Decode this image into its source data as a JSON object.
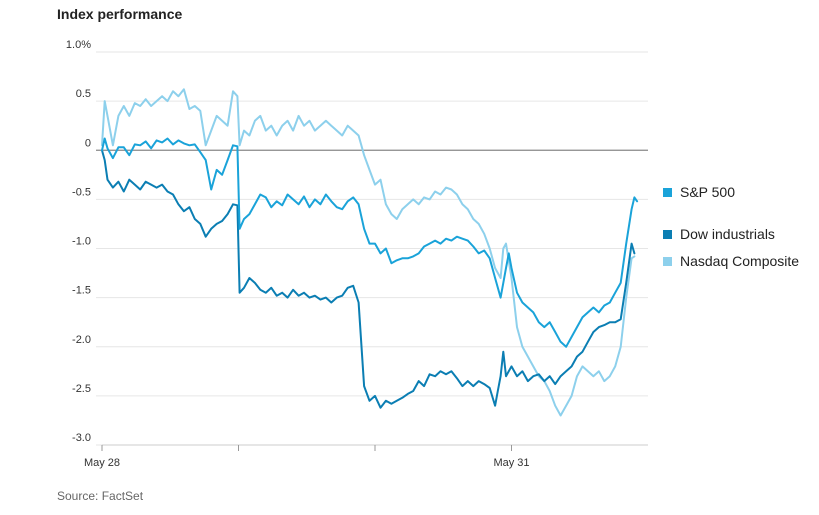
{
  "chart_data": {
    "type": "line",
    "title": "Index performance",
    "source": "Source: FactSet",
    "xlabel": "",
    "ylabel": "",
    "ylim": [
      -3.0,
      1.0
    ],
    "xlim": [
      0,
      100
    ],
    "y_ticks": [
      {
        "value": 1.0,
        "label": "1.0%"
      },
      {
        "value": 0.5,
        "label": "0.5"
      },
      {
        "value": 0,
        "label": "0"
      },
      {
        "value": -0.5,
        "label": "-0.5"
      },
      {
        "value": -1.0,
        "label": "-1.0"
      },
      {
        "value": -1.5,
        "label": "-1.5"
      },
      {
        "value": -2.0,
        "label": "-2.0"
      },
      {
        "value": -2.5,
        "label": "-2.5"
      },
      {
        "value": -3.0,
        "label": "-3.0"
      }
    ],
    "x_ticks": [
      {
        "x": 0,
        "label": "May 28"
      },
      {
        "x": 25,
        "label": ""
      },
      {
        "x": 50,
        "label": ""
      },
      {
        "x": 75,
        "label": "May 31"
      }
    ],
    "grid": true,
    "legend_position": "right",
    "series": [
      {
        "name": "S&P 500",
        "color": "#1aa3d9",
        "points": [
          [
            0,
            0
          ],
          [
            0.5,
            0.12
          ],
          [
            1,
            0.02
          ],
          [
            2,
            -0.08
          ],
          [
            3,
            0.03
          ],
          [
            4,
            0.03
          ],
          [
            5,
            -0.05
          ],
          [
            6,
            0.06
          ],
          [
            7,
            0.05
          ],
          [
            8,
            0.09
          ],
          [
            9,
            0.02
          ],
          [
            10,
            0.1
          ],
          [
            11,
            0.08
          ],
          [
            12,
            0.12
          ],
          [
            13,
            0.06
          ],
          [
            14,
            0.1
          ],
          [
            15,
            0.07
          ],
          [
            16,
            0.05
          ],
          [
            17,
            0.06
          ],
          [
            18,
            -0.02
          ],
          [
            19,
            -0.1
          ],
          [
            20,
            -0.4
          ],
          [
            21,
            -0.2
          ],
          [
            22,
            -0.25
          ],
          [
            23,
            -0.1
          ],
          [
            24,
            0.05
          ],
          [
            24.8,
            0.04
          ],
          [
            25.2,
            -0.8
          ],
          [
            26,
            -0.7
          ],
          [
            27,
            -0.65
          ],
          [
            28,
            -0.55
          ],
          [
            29,
            -0.45
          ],
          [
            30,
            -0.48
          ],
          [
            31,
            -0.58
          ],
          [
            32,
            -0.52
          ],
          [
            33,
            -0.56
          ],
          [
            34,
            -0.45
          ],
          [
            35,
            -0.5
          ],
          [
            36,
            -0.55
          ],
          [
            37,
            -0.47
          ],
          [
            38,
            -0.58
          ],
          [
            39,
            -0.5
          ],
          [
            40,
            -0.55
          ],
          [
            41,
            -0.45
          ],
          [
            42,
            -0.52
          ],
          [
            43,
            -0.58
          ],
          [
            44,
            -0.6
          ],
          [
            45,
            -0.52
          ],
          [
            46,
            -0.48
          ],
          [
            47,
            -0.55
          ],
          [
            48,
            -0.8
          ],
          [
            49,
            -0.95
          ],
          [
            50,
            -0.95
          ],
          [
            51,
            -1.05
          ],
          [
            52,
            -1.0
          ],
          [
            53,
            -1.15
          ],
          [
            54,
            -1.12
          ],
          [
            55,
            -1.1
          ],
          [
            56,
            -1.1
          ],
          [
            57,
            -1.08
          ],
          [
            58,
            -1.05
          ],
          [
            59,
            -0.98
          ],
          [
            60,
            -0.95
          ],
          [
            61,
            -0.92
          ],
          [
            62,
            -0.95
          ],
          [
            63,
            -0.9
          ],
          [
            64,
            -0.92
          ],
          [
            65,
            -0.88
          ],
          [
            66,
            -0.9
          ],
          [
            67,
            -0.92
          ],
          [
            68,
            -0.98
          ],
          [
            69,
            -1.05
          ],
          [
            70,
            -1.02
          ],
          [
            71,
            -1.1
          ],
          [
            72,
            -1.3
          ],
          [
            73,
            -1.5
          ],
          [
            73.5,
            -1.35
          ],
          [
            74,
            -1.2
          ],
          [
            74.5,
            -1.05
          ],
          [
            75,
            -1.2
          ],
          [
            76,
            -1.45
          ],
          [
            77,
            -1.55
          ],
          [
            78,
            -1.6
          ],
          [
            79,
            -1.65
          ],
          [
            80,
            -1.75
          ],
          [
            81,
            -1.8
          ],
          [
            82,
            -1.75
          ],
          [
            83,
            -1.85
          ],
          [
            84,
            -1.95
          ],
          [
            85,
            -2.0
          ],
          [
            86,
            -1.9
          ],
          [
            87,
            -1.8
          ],
          [
            88,
            -1.7
          ],
          [
            89,
            -1.65
          ],
          [
            90,
            -1.6
          ],
          [
            91,
            -1.65
          ],
          [
            92,
            -1.58
          ],
          [
            93,
            -1.55
          ],
          [
            94,
            -1.45
          ],
          [
            95,
            -1.35
          ],
          [
            96,
            -0.95
          ],
          [
            97,
            -0.6
          ],
          [
            97.5,
            -0.48
          ],
          [
            98,
            -0.52
          ]
        ]
      },
      {
        "name": "Dow industrials",
        "color": "#0b7eb3",
        "points": [
          [
            0,
            0
          ],
          [
            0.5,
            -0.1
          ],
          [
            1,
            -0.3
          ],
          [
            2,
            -0.38
          ],
          [
            3,
            -0.32
          ],
          [
            4,
            -0.42
          ],
          [
            5,
            -0.3
          ],
          [
            6,
            -0.35
          ],
          [
            7,
            -0.4
          ],
          [
            8,
            -0.32
          ],
          [
            9,
            -0.35
          ],
          [
            10,
            -0.38
          ],
          [
            11,
            -0.35
          ],
          [
            12,
            -0.42
          ],
          [
            13,
            -0.45
          ],
          [
            14,
            -0.55
          ],
          [
            15,
            -0.62
          ],
          [
            16,
            -0.58
          ],
          [
            17,
            -0.7
          ],
          [
            18,
            -0.75
          ],
          [
            19,
            -0.88
          ],
          [
            20,
            -0.8
          ],
          [
            21,
            -0.75
          ],
          [
            22,
            -0.72
          ],
          [
            23,
            -0.65
          ],
          [
            24,
            -0.55
          ],
          [
            24.8,
            -0.56
          ],
          [
            25.2,
            -1.45
          ],
          [
            26,
            -1.4
          ],
          [
            27,
            -1.3
          ],
          [
            28,
            -1.35
          ],
          [
            29,
            -1.42
          ],
          [
            30,
            -1.45
          ],
          [
            31,
            -1.4
          ],
          [
            32,
            -1.48
          ],
          [
            33,
            -1.45
          ],
          [
            34,
            -1.5
          ],
          [
            35,
            -1.42
          ],
          [
            36,
            -1.48
          ],
          [
            37,
            -1.45
          ],
          [
            38,
            -1.5
          ],
          [
            39,
            -1.48
          ],
          [
            40,
            -1.52
          ],
          [
            41,
            -1.5
          ],
          [
            42,
            -1.55
          ],
          [
            43,
            -1.5
          ],
          [
            44,
            -1.48
          ],
          [
            45,
            -1.4
          ],
          [
            46,
            -1.38
          ],
          [
            47,
            -1.55
          ],
          [
            48,
            -2.4
          ],
          [
            49,
            -2.55
          ],
          [
            50,
            -2.5
          ],
          [
            51,
            -2.62
          ],
          [
            52,
            -2.55
          ],
          [
            53,
            -2.58
          ],
          [
            54,
            -2.55
          ],
          [
            55,
            -2.52
          ],
          [
            56,
            -2.48
          ],
          [
            57,
            -2.45
          ],
          [
            58,
            -2.35
          ],
          [
            59,
            -2.4
          ],
          [
            60,
            -2.28
          ],
          [
            61,
            -2.3
          ],
          [
            62,
            -2.25
          ],
          [
            63,
            -2.28
          ],
          [
            64,
            -2.25
          ],
          [
            65,
            -2.32
          ],
          [
            66,
            -2.4
          ],
          [
            67,
            -2.35
          ],
          [
            68,
            -2.4
          ],
          [
            69,
            -2.35
          ],
          [
            70,
            -2.38
          ],
          [
            71,
            -2.42
          ],
          [
            72,
            -2.6
          ],
          [
            72.5,
            -2.45
          ],
          [
            73,
            -2.3
          ],
          [
            73.5,
            -2.05
          ],
          [
            74,
            -2.3
          ],
          [
            75,
            -2.2
          ],
          [
            76,
            -2.3
          ],
          [
            77,
            -2.25
          ],
          [
            78,
            -2.35
          ],
          [
            79,
            -2.3
          ],
          [
            80,
            -2.28
          ],
          [
            81,
            -2.35
          ],
          [
            82,
            -2.3
          ],
          [
            83,
            -2.38
          ],
          [
            84,
            -2.3
          ],
          [
            85,
            -2.25
          ],
          [
            86,
            -2.2
          ],
          [
            87,
            -2.1
          ],
          [
            88,
            -2.05
          ],
          [
            89,
            -1.95
          ],
          [
            90,
            -1.85
          ],
          [
            91,
            -1.8
          ],
          [
            92,
            -1.78
          ],
          [
            93,
            -1.75
          ],
          [
            94,
            -1.75
          ],
          [
            95,
            -1.72
          ],
          [
            96,
            -1.35
          ],
          [
            97,
            -0.95
          ],
          [
            97.5,
            -1.05
          ]
        ]
      },
      {
        "name": "Nasdaq Composite",
        "color": "#8dd0ec",
        "points": [
          [
            0,
            0.05
          ],
          [
            0.5,
            0.5
          ],
          [
            1,
            0.35
          ],
          [
            2,
            0.05
          ],
          [
            3,
            0.35
          ],
          [
            4,
            0.45
          ],
          [
            5,
            0.35
          ],
          [
            6,
            0.48
          ],
          [
            7,
            0.45
          ],
          [
            8,
            0.52
          ],
          [
            9,
            0.45
          ],
          [
            10,
            0.5
          ],
          [
            11,
            0.55
          ],
          [
            12,
            0.5
          ],
          [
            13,
            0.6
          ],
          [
            14,
            0.55
          ],
          [
            15,
            0.62
          ],
          [
            16,
            0.42
          ],
          [
            17,
            0.45
          ],
          [
            18,
            0.4
          ],
          [
            19,
            0.05
          ],
          [
            20,
            0.2
          ],
          [
            21,
            0.35
          ],
          [
            22,
            0.3
          ],
          [
            23,
            0.25
          ],
          [
            24,
            0.6
          ],
          [
            24.8,
            0.55
          ],
          [
            25.2,
            0.05
          ],
          [
            26,
            0.2
          ],
          [
            27,
            0.15
          ],
          [
            28,
            0.3
          ],
          [
            29,
            0.35
          ],
          [
            30,
            0.2
          ],
          [
            31,
            0.25
          ],
          [
            32,
            0.15
          ],
          [
            33,
            0.25
          ],
          [
            34,
            0.3
          ],
          [
            35,
            0.2
          ],
          [
            36,
            0.35
          ],
          [
            37,
            0.25
          ],
          [
            38,
            0.3
          ],
          [
            39,
            0.2
          ],
          [
            40,
            0.25
          ],
          [
            41,
            0.3
          ],
          [
            42,
            0.25
          ],
          [
            43,
            0.2
          ],
          [
            44,
            0.15
          ],
          [
            45,
            0.25
          ],
          [
            46,
            0.2
          ],
          [
            47,
            0.15
          ],
          [
            48,
            -0.05
          ],
          [
            49,
            -0.2
          ],
          [
            50,
            -0.35
          ],
          [
            51,
            -0.3
          ],
          [
            52,
            -0.55
          ],
          [
            53,
            -0.65
          ],
          [
            54,
            -0.7
          ],
          [
            55,
            -0.6
          ],
          [
            56,
            -0.55
          ],
          [
            57,
            -0.5
          ],
          [
            58,
            -0.55
          ],
          [
            59,
            -0.48
          ],
          [
            60,
            -0.5
          ],
          [
            61,
            -0.42
          ],
          [
            62,
            -0.45
          ],
          [
            63,
            -0.38
          ],
          [
            64,
            -0.4
          ],
          [
            65,
            -0.45
          ],
          [
            66,
            -0.55
          ],
          [
            67,
            -0.6
          ],
          [
            68,
            -0.7
          ],
          [
            69,
            -0.75
          ],
          [
            70,
            -0.85
          ],
          [
            71,
            -1.0
          ],
          [
            72,
            -1.2
          ],
          [
            73,
            -1.3
          ],
          [
            73.5,
            -1.0
          ],
          [
            74,
            -0.95
          ],
          [
            75,
            -1.3
          ],
          [
            76,
            -1.8
          ],
          [
            77,
            -2.0
          ],
          [
            78,
            -2.1
          ],
          [
            79,
            -2.2
          ],
          [
            80,
            -2.3
          ],
          [
            81,
            -2.35
          ],
          [
            82,
            -2.45
          ],
          [
            83,
            -2.6
          ],
          [
            84,
            -2.7
          ],
          [
            85,
            -2.6
          ],
          [
            86,
            -2.5
          ],
          [
            87,
            -2.3
          ],
          [
            88,
            -2.2
          ],
          [
            89,
            -2.25
          ],
          [
            90,
            -2.3
          ],
          [
            91,
            -2.25
          ],
          [
            92,
            -2.35
          ],
          [
            93,
            -2.3
          ],
          [
            94,
            -2.2
          ],
          [
            95,
            -2.0
          ],
          [
            96,
            -1.5
          ],
          [
            97,
            -1.1
          ],
          [
            97.5,
            -1.08
          ]
        ]
      }
    ]
  }
}
